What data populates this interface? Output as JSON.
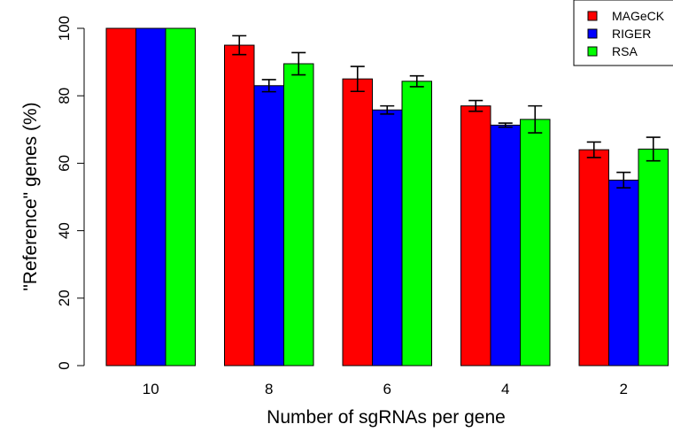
{
  "chart_data": {
    "type": "bar",
    "title": "",
    "xlabel": "Number of sgRNAs per gene",
    "ylabel": "\"Reference\" genes (%)",
    "categories": [
      "10",
      "8",
      "6",
      "4",
      "2"
    ],
    "ylim": [
      0,
      100
    ],
    "yticks": [
      0,
      20,
      40,
      60,
      80,
      100
    ],
    "grid": false,
    "legend_position": "top-right",
    "series": [
      {
        "name": "MAGeCK",
        "color": "#ff0000",
        "values": [
          100,
          95,
          85,
          77,
          64
        ],
        "error": [
          0,
          2.8,
          3.7,
          1.6,
          2.3
        ]
      },
      {
        "name": "RIGER",
        "color": "#0000ff",
        "values": [
          100,
          83,
          75.8,
          71.3,
          55
        ],
        "error": [
          0,
          1.8,
          1.2,
          0.6,
          2.3
        ]
      },
      {
        "name": "RSA",
        "color": "#00ff00",
        "values": [
          100,
          89.5,
          84.3,
          73,
          64.2
        ],
        "error": [
          0,
          3.3,
          1.6,
          4,
          3.5
        ]
      }
    ]
  }
}
